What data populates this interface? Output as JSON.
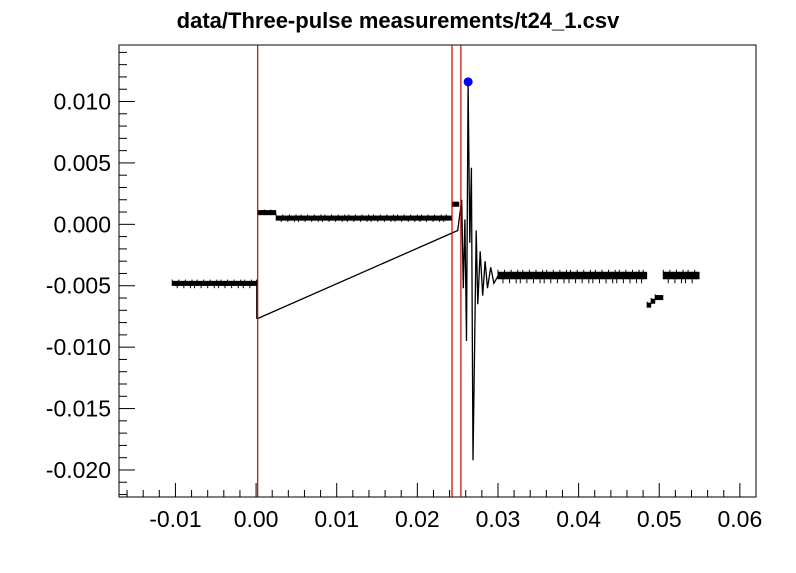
{
  "chart_data": {
    "type": "line",
    "title": "data/Three-pulse measurements/t24_1.csv",
    "xlabel": "",
    "ylabel": "",
    "xlim": [
      -0.017,
      0.062
    ],
    "ylim": [
      -0.0222,
      0.0146
    ],
    "x_ticks": [
      -0.01,
      0.0,
      0.01,
      0.02,
      0.03,
      0.04,
      0.05,
      0.06
    ],
    "x_tick_labels": [
      "-0.01",
      "0.00",
      "0.01",
      "0.02",
      "0.03",
      "0.04",
      "0.05",
      "0.06"
    ],
    "y_ticks": [
      -0.02,
      -0.015,
      -0.01,
      -0.005,
      0.0,
      0.005,
      0.01
    ],
    "y_tick_labels": [
      "-0.020",
      "-0.015",
      "-0.010",
      "-0.005",
      "0.000",
      "0.005",
      "0.010"
    ],
    "grid": false,
    "colors": {
      "trace": "#000000",
      "marker_lines": "#cc0000",
      "peak_marker": "#0000ff"
    },
    "vertical_lines_x": [
      0.0002,
      0.0243,
      0.0254
    ],
    "peak_marker": {
      "x": 0.0263,
      "y": 0.0116
    },
    "series": [
      {
        "segments": [
          {
            "x": [
              -0.0104,
              0.0001
            ],
            "y_top": -0.0045,
            "y_bottom": -0.0052
          },
          {
            "x": [
              0.0002,
              0.0025
            ],
            "y_top": 0.0012,
            "y_bottom": 0.0009
          },
          {
            "x": [
              0.0025,
              0.0243
            ],
            "y_top": 0.0008,
            "y_bottom": 0.0002
          },
          {
            "x": [
              0.0243,
              0.0252
            ],
            "y_top": 0.0019,
            "y_bottom": 0.0015
          },
          {
            "x": [
              0.03,
              0.0485
            ],
            "y_top": -0.0037,
            "y_bottom": -0.0048
          },
          {
            "x": [
              0.0485,
              0.049
            ],
            "y_top": -0.0063,
            "y_bottom": -0.0068
          },
          {
            "x": [
              0.049,
              0.0495
            ],
            "y_top": -0.006,
            "y_bottom": -0.0064
          },
          {
            "x": [
              0.0495,
              0.0505
            ],
            "y_top": -0.0057,
            "y_bottom": -0.0061
          },
          {
            "x": [
              0.0505,
              0.055
            ],
            "y_top": -0.0037,
            "y_bottom": -0.0048
          }
        ],
        "spikes": [
          {
            "x": 0.0001,
            "y": -0.0077
          },
          {
            "x": 0.025,
            "y": -0.0005
          },
          {
            "x": 0.0255,
            "y": 0.002
          },
          {
            "x": 0.0257,
            "y": -0.0052
          },
          {
            "x": 0.0259,
            "y": 0.0004
          },
          {
            "x": 0.0261,
            "y": -0.0095
          },
          {
            "x": 0.0263,
            "y": 0.0116
          },
          {
            "x": 0.0265,
            "y": -0.0015
          },
          {
            "x": 0.0267,
            "y": 0.0046
          },
          {
            "x": 0.0269,
            "y": -0.0192
          },
          {
            "x": 0.0271,
            "y": -0.01
          },
          {
            "x": 0.0273,
            "y": -0.0005
          },
          {
            "x": 0.0275,
            "y": -0.0065
          },
          {
            "x": 0.0278,
            "y": -0.0022
          },
          {
            "x": 0.0281,
            "y": -0.0058
          },
          {
            "x": 0.0284,
            "y": -0.003
          },
          {
            "x": 0.0287,
            "y": -0.0052
          },
          {
            "x": 0.0291,
            "y": -0.0035
          },
          {
            "x": 0.0295,
            "y": -0.0048
          },
          {
            "x": 0.03,
            "y": -0.0042
          }
        ]
      }
    ]
  }
}
